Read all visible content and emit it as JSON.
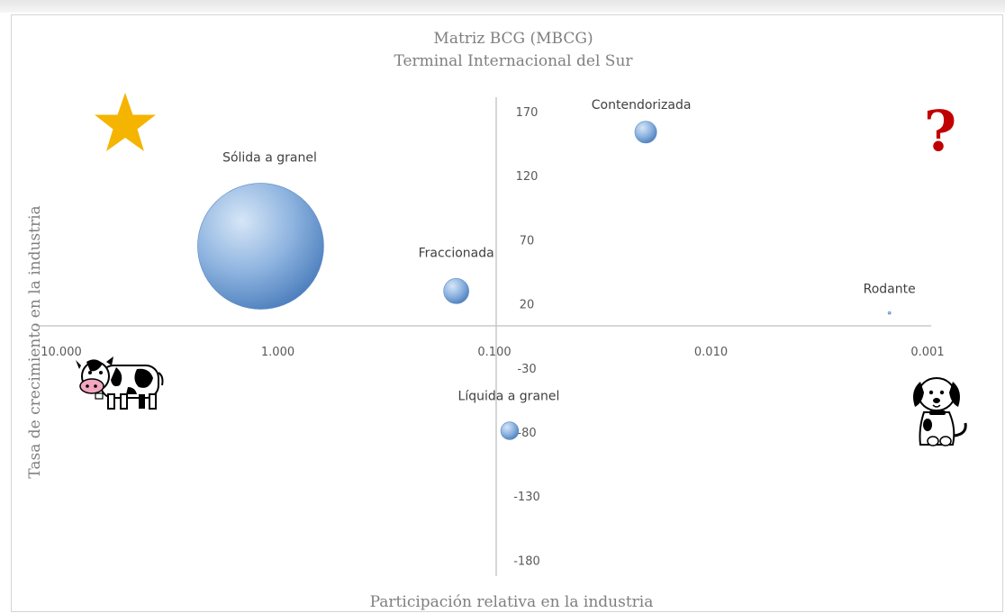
{
  "chart_data": {
    "type": "bubble",
    "title": "Matriz BCG (MBCG)",
    "subtitle": "Terminal Internacional del Sur",
    "xlabel": "Participación relativa en la industria",
    "ylabel": "Tasa de crecimiento en la industria",
    "x_scale": "log-reversed",
    "xlim": [
      10,
      0.001
    ],
    "ylim": [
      -180,
      170
    ],
    "x_ticks": [
      "10.000",
      "1.000",
      "0.100",
      "0.010",
      "0.001"
    ],
    "y_ticks": [
      "170",
      "120",
      "70",
      "20",
      "-30",
      "-80",
      "-130",
      "-180"
    ],
    "grid": false,
    "points": [
      {
        "name": "Sólida a granel",
        "x": 1.2,
        "y": 65,
        "size": 100
      },
      {
        "name": "Fraccionada",
        "x": 0.15,
        "y": 30,
        "size": 4
      },
      {
        "name": "Contendorizada",
        "x": 0.02,
        "y": 154,
        "size": 3
      },
      {
        "name": "Líquida a granel",
        "x": 0.085,
        "y": -79,
        "size": 2
      },
      {
        "name": "Rodante",
        "x": 0.0015,
        "y": 13,
        "size": 0.05
      }
    ],
    "quadrant_icons": {
      "top_left": "star-icon",
      "top_right": "question-mark-icon",
      "bottom_left": "cow-icon",
      "bottom_right": "dog-icon"
    },
    "colors": {
      "bubble_light": "#c7dcf2",
      "bubble_dark": "#5b8ac4",
      "star": "#f5b400",
      "question": "#c00000",
      "axis": "#bfbfbf"
    }
  }
}
